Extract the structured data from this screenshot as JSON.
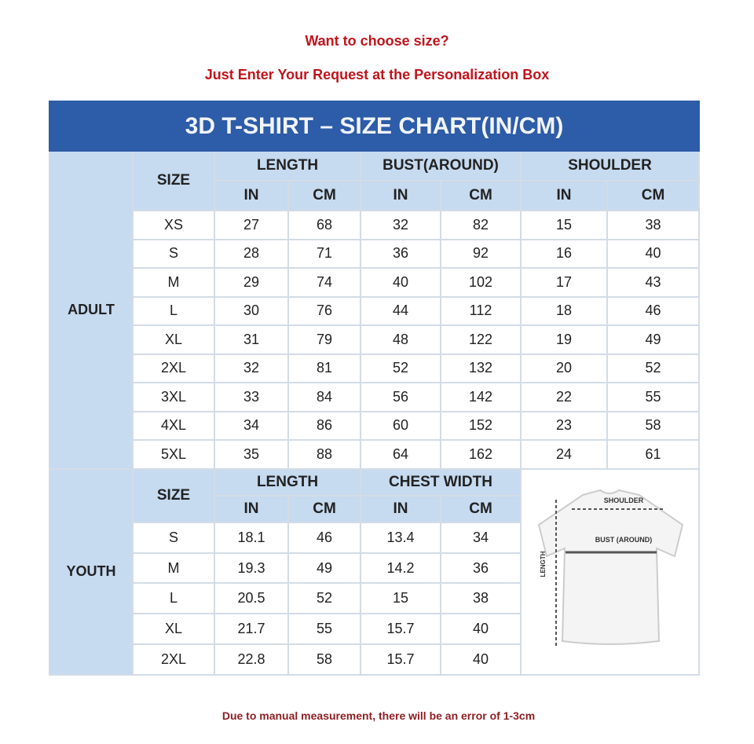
{
  "header": {
    "line1": "Want to choose size?",
    "line2": "Just Enter Your Request at the Personalization Box"
  },
  "colors": {
    "title_bar": "#2d5ca8",
    "header_bg": "#c6daf0",
    "promo_text": "#c0141c"
  },
  "table": {
    "title": "3D T-SHIRT – SIZE CHART(IN/CM)",
    "adult": {
      "label": "ADULT",
      "size_header": "SIZE",
      "groups": [
        "LENGTH",
        "BUST(AROUND)",
        "SHOULDER"
      ],
      "units": [
        "IN",
        "CM",
        "IN",
        "CM",
        "IN",
        "CM"
      ],
      "rows": [
        [
          "XS",
          "27",
          "68",
          "32",
          "82",
          "15",
          "38"
        ],
        [
          "S",
          "28",
          "71",
          "36",
          "92",
          "16",
          "40"
        ],
        [
          "M",
          "29",
          "74",
          "40",
          "102",
          "17",
          "43"
        ],
        [
          "L",
          "30",
          "76",
          "44",
          "112",
          "18",
          "46"
        ],
        [
          "XL",
          "31",
          "79",
          "48",
          "122",
          "19",
          "49"
        ],
        [
          "2XL",
          "32",
          "81",
          "52",
          "132",
          "20",
          "52"
        ],
        [
          "3XL",
          "33",
          "84",
          "56",
          "142",
          "22",
          "55"
        ],
        [
          "4XL",
          "34",
          "86",
          "60",
          "152",
          "23",
          "58"
        ],
        [
          "5XL",
          "35",
          "88",
          "64",
          "162",
          "24",
          "61"
        ]
      ]
    },
    "youth": {
      "label": "YOUTH",
      "size_header": "SIZE",
      "groups": [
        "LENGTH",
        "CHEST WIDTH"
      ],
      "units": [
        "IN",
        "CM",
        "IN",
        "CM"
      ],
      "rows": [
        [
          "S",
          "18.1",
          "46",
          "13.4",
          "34"
        ],
        [
          "M",
          "19.3",
          "49",
          "14.2",
          "36"
        ],
        [
          "L",
          "20.5",
          "52",
          "15",
          "38"
        ],
        [
          "XL",
          "21.7",
          "55",
          "15.7",
          "40"
        ],
        [
          "2XL",
          "22.8",
          "58",
          "15.7",
          "40"
        ]
      ]
    },
    "diagram": {
      "shoulder": "SHOULDER",
      "bust": "BUST (AROUND)",
      "length": "LENGTH"
    }
  },
  "footer": {
    "note": "Due to manual measurement, there will be an error of 1-3cm"
  }
}
